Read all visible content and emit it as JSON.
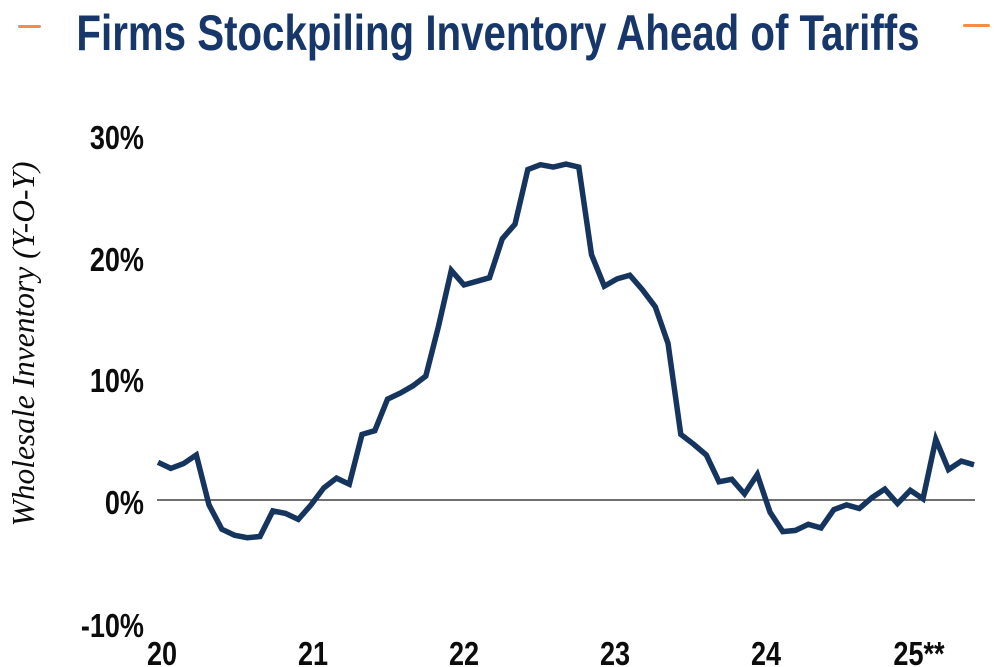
{
  "title": "Firms Stockpiling Inventory Ahead of Tariffs",
  "colors": {
    "navy_title": "#17376a",
    "navy_line": "#16355e",
    "orange_accent": "#f68b4c",
    "zero_line": "#1a1a1a",
    "tick_text": "#0c0c0c"
  },
  "accents": {
    "left_dash": "title-accent-dash",
    "right_dash": "title-accent-dash"
  },
  "chart_data": {
    "type": "line",
    "title": "Firms Stockpiling Inventory Ahead of Tariffs",
    "ylabel": "Wholesale Inventory (Y-O-Y)",
    "xlabel": "",
    "grid": "none",
    "zero_baseline": true,
    "ylim": [
      -10,
      30
    ],
    "y_ticks": [
      30,
      20,
      10,
      0,
      -10
    ],
    "y_tick_labels": [
      "30%",
      "20%",
      "10%",
      "0%",
      "-10%"
    ],
    "x_tick_labels": [
      "20",
      "21",
      "22",
      "23",
      "24",
      "25**"
    ],
    "x_frequency": "monthly",
    "x_start": "2020-01",
    "x_end": "2025-05",
    "series": [
      {
        "name": "Wholesale Inventory (Y-O-Y)",
        "values": [
          3.1,
          2.6,
          3.0,
          3.7,
          -0.4,
          -2.4,
          -2.9,
          -3.1,
          -3.0,
          -0.9,
          -1.1,
          -1.6,
          -0.4,
          1.0,
          1.8,
          1.3,
          5.4,
          5.7,
          8.3,
          8.8,
          9.4,
          10.2,
          14.3,
          18.9,
          17.7,
          18.0,
          18.3,
          21.5,
          22.7,
          27.2,
          27.6,
          27.4,
          27.65,
          27.4,
          20.2,
          17.6,
          18.2,
          18.5,
          17.3,
          15.9,
          12.9,
          5.4,
          4.6,
          3.7,
          1.5,
          1.7,
          0.5,
          2.1,
          -1.0,
          -2.6,
          -2.5,
          -2.0,
          -2.3,
          -0.8,
          -0.4,
          -0.7,
          0.2,
          0.9,
          -0.3,
          0.8,
          0.1,
          5.0,
          2.5,
          3.2,
          2.9
        ]
      }
    ]
  }
}
